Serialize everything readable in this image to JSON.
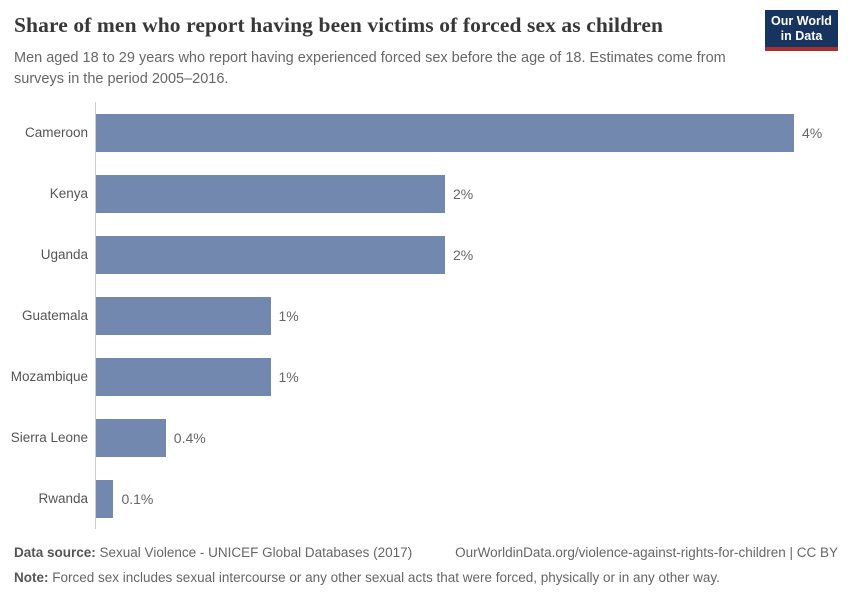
{
  "header": {
    "title": "Share of men who report having been victims of forced sex as children",
    "subtitle": "Men aged 18 to 29 years who report having experienced forced sex before the age of 18. Estimates come from surveys in the period 2005–2016."
  },
  "logo": {
    "line1": "Our World",
    "line2": "in Data",
    "bg_color": "#16345f",
    "accent_color": "#a92e2e"
  },
  "chart_data": {
    "type": "bar",
    "orientation": "horizontal",
    "title": "Share of men who report having been victims of forced sex as children",
    "categories": [
      "Cameroon",
      "Kenya",
      "Uganda",
      "Guatemala",
      "Mozambique",
      "Sierra Leone",
      "Rwanda"
    ],
    "values": [
      4,
      2,
      2,
      1,
      1,
      0.4,
      0.1
    ],
    "value_labels": [
      "4%",
      "2%",
      "2%",
      "1%",
      "1%",
      "0.4%",
      "0.1%"
    ],
    "unit": "%",
    "xlabel": "",
    "ylabel": "",
    "xlim": [
      0,
      4
    ],
    "grid": false,
    "legend": false,
    "bar_color": "#7288ae",
    "axis_line_color": "#cccccc"
  },
  "footer": {
    "source_label": "Data source:",
    "source_text": " Sexual Violence - UNICEF Global Databases (2017)",
    "link_text": "OurWorldinData.org/violence-against-rights-for-children | CC BY",
    "note_label": "Note:",
    "note_text": " Forced sex includes sexual intercourse or any other sexual acts that were forced, physically or in any other way."
  }
}
